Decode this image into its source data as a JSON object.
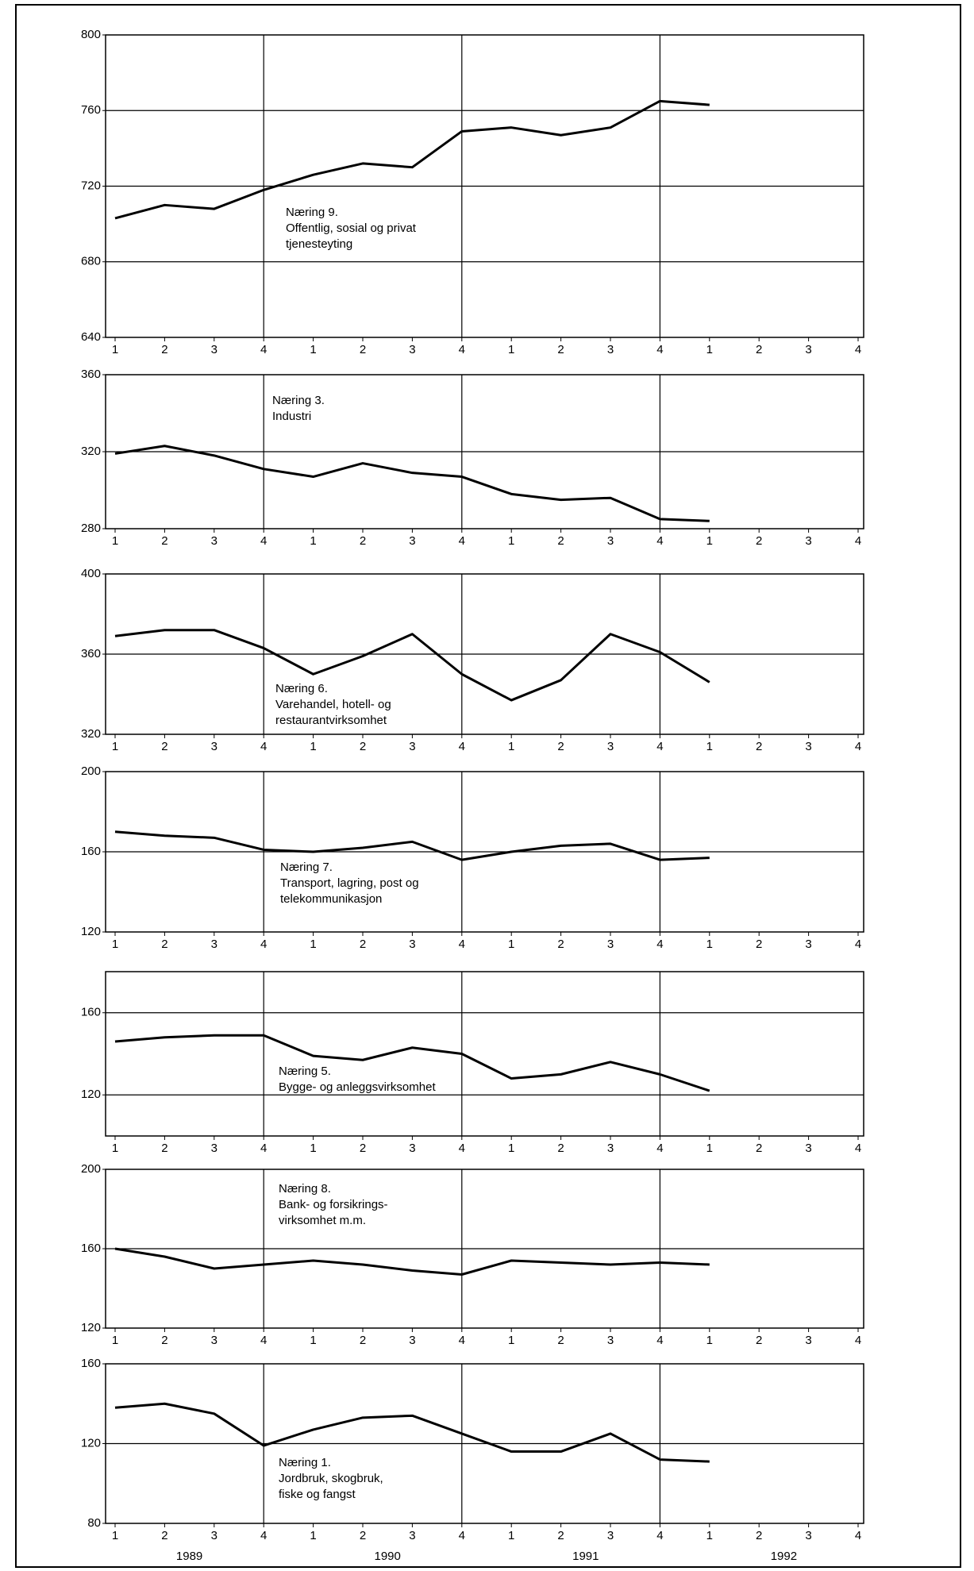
{
  "chart_data": [
    {
      "type": "line",
      "annotation": [
        "Næring 9.",
        "Offentlig, sosial og privat",
        "tjenesteyting"
      ],
      "categories": [
        "1",
        "2",
        "3",
        "4",
        "1",
        "2",
        "3",
        "4",
        "1",
        "2",
        "3",
        "4",
        "1",
        "2",
        "3",
        "4"
      ],
      "series": [
        {
          "color": "#000000",
          "values": [
            703,
            710,
            708,
            718,
            726,
            732,
            730,
            749,
            751,
            747,
            751,
            765,
            763,
            null,
            null,
            null
          ]
        }
      ],
      "ylim": [
        640,
        800
      ],
      "yticks": [
        640,
        680,
        720,
        760,
        800
      ],
      "grid": true
    },
    {
      "type": "line",
      "annotation": [
        "Næring 3.",
        "Industri"
      ],
      "categories": [
        "1",
        "2",
        "3",
        "4",
        "1",
        "2",
        "3",
        "4",
        "1",
        "2",
        "3",
        "4",
        "1",
        "2",
        "3",
        "4"
      ],
      "series": [
        {
          "color": "#000000",
          "values": [
            319,
            323,
            318,
            311,
            307,
            314,
            309,
            307,
            298,
            295,
            296,
            285,
            284,
            null,
            null,
            null
          ]
        }
      ],
      "ylim": [
        280,
        360
      ],
      "yticks": [
        280,
        320,
        360
      ],
      "grid": true
    },
    {
      "type": "line",
      "annotation": [
        "Næring 6.",
        "Varehandel, hotell- og",
        "restaurantvirksomhet"
      ],
      "categories": [
        "1",
        "2",
        "3",
        "4",
        "1",
        "2",
        "3",
        "4",
        "1",
        "2",
        "3",
        "4",
        "1",
        "2",
        "3",
        "4"
      ],
      "series": [
        {
          "color": "#000000",
          "values": [
            369,
            372,
            372,
            363,
            350,
            359,
            370,
            350,
            337,
            347,
            370,
            361,
            346,
            null,
            null,
            null
          ]
        }
      ],
      "ylim": [
        320,
        400
      ],
      "yticks": [
        320,
        360,
        400
      ],
      "grid": true
    },
    {
      "type": "line",
      "annotation": [
        "Næring 7.",
        "Transport, lagring, post og",
        "telekommunikasjon"
      ],
      "categories": [
        "1",
        "2",
        "3",
        "4",
        "1",
        "2",
        "3",
        "4",
        "1",
        "2",
        "3",
        "4",
        "1",
        "2",
        "3",
        "4"
      ],
      "series": [
        {
          "color": "#000000",
          "values": [
            170,
            168,
            167,
            161,
            160,
            162,
            165,
            156,
            160,
            163,
            164,
            156,
            157,
            null,
            null,
            null
          ]
        }
      ],
      "ylim": [
        120,
        200
      ],
      "yticks": [
        120,
        160,
        200
      ],
      "grid": true
    },
    {
      "type": "line",
      "annotation": [
        "Næring 5.",
        "Bygge- og anleggsvirksomhet"
      ],
      "categories": [
        "1",
        "2",
        "3",
        "4",
        "1",
        "2",
        "3",
        "4",
        "1",
        "2",
        "3",
        "4",
        "1",
        "2",
        "3",
        "4"
      ],
      "series": [
        {
          "color": "#000000",
          "values": [
            146,
            148,
            149,
            149,
            139,
            137,
            143,
            140,
            128,
            130,
            136,
            130,
            122,
            null,
            null,
            null
          ]
        }
      ],
      "ylim": [
        100,
        180
      ],
      "yticks": [
        120,
        160
      ],
      "grid": true
    },
    {
      "type": "line",
      "annotation": [
        "Næring 8.",
        "Bank- og forsikrings-",
        "virksomhet m.m."
      ],
      "categories": [
        "1",
        "2",
        "3",
        "4",
        "1",
        "2",
        "3",
        "4",
        "1",
        "2",
        "3",
        "4",
        "1",
        "2",
        "3",
        "4"
      ],
      "series": [
        {
          "color": "#000000",
          "values": [
            160,
            156,
            150,
            152,
            154,
            152,
            149,
            147,
            154,
            153,
            152,
            153,
            152,
            null,
            null,
            null
          ]
        }
      ],
      "ylim": [
        120,
        200
      ],
      "yticks": [
        120,
        160,
        200
      ],
      "grid": true
    },
    {
      "type": "line",
      "annotation": [
        "Næring 1.",
        "Jordbruk, skogbruk,",
        "fiske og fangst"
      ],
      "categories": [
        "1",
        "2",
        "3",
        "4",
        "1",
        "2",
        "3",
        "4",
        "1",
        "2",
        "3",
        "4",
        "1",
        "2",
        "3",
        "4"
      ],
      "series": [
        {
          "color": "#000000",
          "values": [
            138,
            140,
            135,
            119,
            127,
            133,
            134,
            125,
            116,
            116,
            125,
            112,
            111,
            null,
            null,
            null
          ]
        }
      ],
      "ylim": [
        80,
        160
      ],
      "yticks": [
        80,
        120,
        160
      ],
      "grid": true,
      "x_group_labels": [
        "1989",
        "1990",
        "1991",
        "1992"
      ]
    }
  ]
}
